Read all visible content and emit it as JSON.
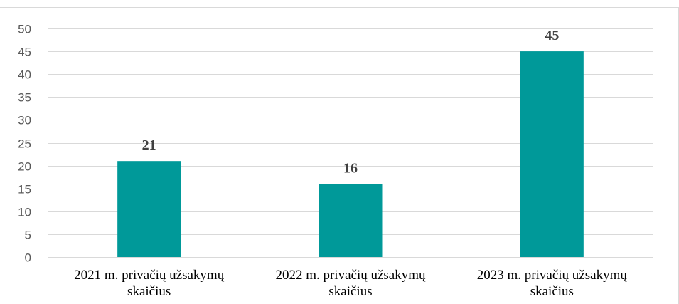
{
  "chart_data": {
    "type": "bar",
    "categories": [
      "2021 m. privačių užsakymų skaičius",
      "2022 m. privačių užsakymų skaičius",
      "2023 m. privačių užsakymų skaičius"
    ],
    "category_lines": [
      [
        "2021 m. privačių užsakymų",
        "skaičius"
      ],
      [
        "2022 m. privačių užsakymų",
        "skaičius"
      ],
      [
        "2023 m. privačių užsakymų",
        "skaičius"
      ]
    ],
    "values": [
      21,
      16,
      45
    ],
    "data_labels": [
      "21",
      "16",
      "45"
    ],
    "yticks": [
      "0",
      "5",
      "10",
      "15",
      "20",
      "25",
      "30",
      "35",
      "40",
      "45",
      "50"
    ],
    "ylim": [
      0,
      50
    ],
    "grid": true,
    "legend": "none",
    "bar_color": "#009999",
    "title": "",
    "xlabel": "",
    "ylabel": ""
  }
}
